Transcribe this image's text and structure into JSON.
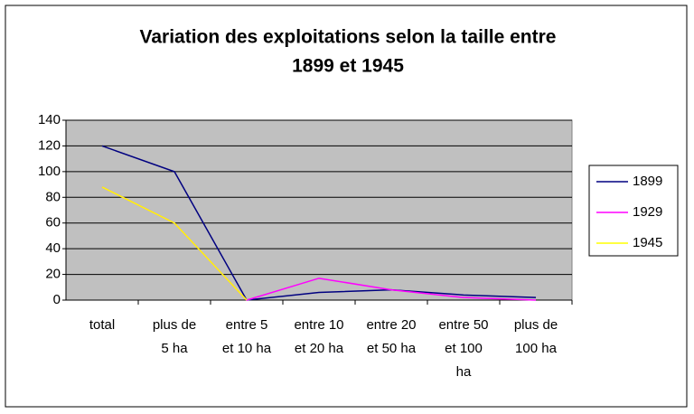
{
  "chart_data": {
    "type": "line",
    "title": [
      "Variation des exploitations selon la taille entre",
      "1899 et 1945"
    ],
    "categories": [
      [
        "total"
      ],
      [
        "plus de",
        "5 ha"
      ],
      [
        "entre 5",
        "et 10 ha"
      ],
      [
        "entre 10",
        "et 20 ha"
      ],
      [
        "entre 20",
        "et 50 ha"
      ],
      [
        "entre 50",
        "et 100",
        "ha"
      ],
      [
        "plus de",
        "100 ha"
      ]
    ],
    "series": [
      {
        "name": "1899",
        "color": "#000080",
        "values": [
          120,
          100,
          0,
          6,
          8,
          4,
          2
        ]
      },
      {
        "name": "1929",
        "color": "#ff00ff",
        "values": [
          88,
          60,
          0,
          17,
          8,
          2,
          0
        ]
      },
      {
        "name": "1945",
        "color": "#ffff00",
        "values": [
          88,
          60,
          0,
          null,
          null,
          null,
          null
        ]
      }
    ],
    "ylim": [
      0,
      140
    ],
    "yticks": [
      0,
      20,
      40,
      60,
      80,
      100,
      120,
      140
    ],
    "grid": true,
    "legend": "right"
  }
}
